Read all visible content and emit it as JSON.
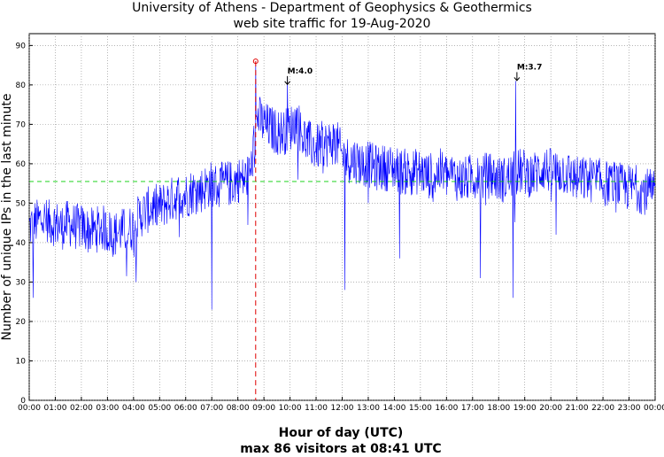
{
  "chart_data": {
    "type": "line",
    "title": "University of Athens - Department of Geophysics & Geothermics",
    "subtitle": "web site traffic for 19-Aug-2020",
    "xlabel": "Hour of day (UTC)",
    "footer": "max 86 visitors at 08:41 UTC",
    "ylabel": "Number of unique IPs in the last minute",
    "xlim": [
      0,
      24
    ],
    "ylim": [
      0,
      93
    ],
    "x_ticks": [
      "00:00",
      "01:00",
      "02:00",
      "03:00",
      "04:00",
      "05:00",
      "06:00",
      "07:00",
      "08:00",
      "09:00",
      "10:00",
      "11:00",
      "12:00",
      "13:00",
      "14:00",
      "15:00",
      "16:00",
      "17:00",
      "18:00",
      "19:00",
      "20:00",
      "21:00",
      "22:00",
      "23:00",
      "00:00"
    ],
    "y_ticks": [
      0,
      10,
      20,
      30,
      40,
      50,
      60,
      70,
      80,
      90
    ],
    "grid": true,
    "average_line": 55.5,
    "max_marker": {
      "hour": 8.683,
      "value": 86
    },
    "annotations": [
      {
        "text": "M:4.0",
        "hour": 9.9,
        "value": 80
      },
      {
        "text": "M:3.7",
        "hour": 18.7,
        "value": 81
      }
    ],
    "series": [
      {
        "color": "#0000ff",
        "x": [
          0,
          0.25,
          0.5,
          0.75,
          1,
          1.25,
          1.5,
          1.75,
          2,
          2.25,
          2.5,
          2.75,
          3,
          3.25,
          3.5,
          3.75,
          4,
          4.25,
          4.5,
          4.75,
          5,
          5.25,
          5.5,
          5.75,
          6,
          6.25,
          6.5,
          6.75,
          7,
          7.25,
          7.5,
          7.75,
          8,
          8.25,
          8.5,
          8.75,
          9,
          9.25,
          9.5,
          9.75,
          10,
          10.25,
          10.5,
          10.75,
          11,
          11.25,
          11.5,
          11.75,
          12,
          12.25,
          12.5,
          12.75,
          13,
          13.25,
          13.5,
          13.75,
          14,
          14.25,
          14.5,
          14.75,
          15,
          15.25,
          15.5,
          15.75,
          16,
          16.25,
          16.5,
          16.75,
          17,
          17.25,
          17.5,
          17.75,
          18,
          18.25,
          18.5,
          18.75,
          19,
          19.25,
          19.5,
          19.75,
          20,
          20.25,
          20.5,
          20.75,
          21,
          21.25,
          21.5,
          21.75,
          22,
          22.25,
          22.5,
          22.75,
          23,
          23.25,
          23.5,
          23.75,
          24
        ],
        "y": [
          44,
          45,
          46,
          45,
          45,
          44,
          45,
          44,
          44,
          43,
          43,
          44,
          43,
          42,
          43,
          43,
          44,
          47,
          48,
          49,
          49,
          50,
          51,
          52,
          52,
          53,
          53,
          54,
          55,
          54,
          55,
          55,
          56,
          56,
          58,
          72,
          70,
          69,
          68,
          68,
          69,
          71,
          67,
          65,
          64,
          65,
          65,
          66,
          62,
          61,
          61,
          60,
          60,
          59,
          59,
          59,
          59,
          58,
          58,
          58,
          58,
          57,
          57,
          58,
          57,
          57,
          56,
          56,
          57,
          56,
          57,
          57,
          56,
          56,
          57,
          58,
          58,
          57,
          58,
          59,
          58,
          58,
          58,
          57,
          56,
          56,
          56,
          56,
          55,
          55,
          55,
          54,
          54,
          54,
          53,
          53,
          52
        ]
      }
    ],
    "spikes": [
      {
        "hour": 0.15,
        "value": 26
      },
      {
        "hour": 4.1,
        "value": 30
      },
      {
        "hour": 7.0,
        "value": 23
      },
      {
        "hour": 12.1,
        "value": 28
      },
      {
        "hour": 14.2,
        "value": 36
      },
      {
        "hour": 17.3,
        "value": 31
      },
      {
        "hour": 18.55,
        "value": 26
      },
      {
        "hour": 20.2,
        "value": 42
      },
      {
        "hour": 10.3,
        "value": 56
      },
      {
        "hour": 13.0,
        "value": 50
      },
      {
        "hour": 18.65,
        "value": 81
      },
      {
        "hour": 9.9,
        "value": 82
      },
      {
        "hour": 8.68,
        "value": 86
      }
    ]
  }
}
